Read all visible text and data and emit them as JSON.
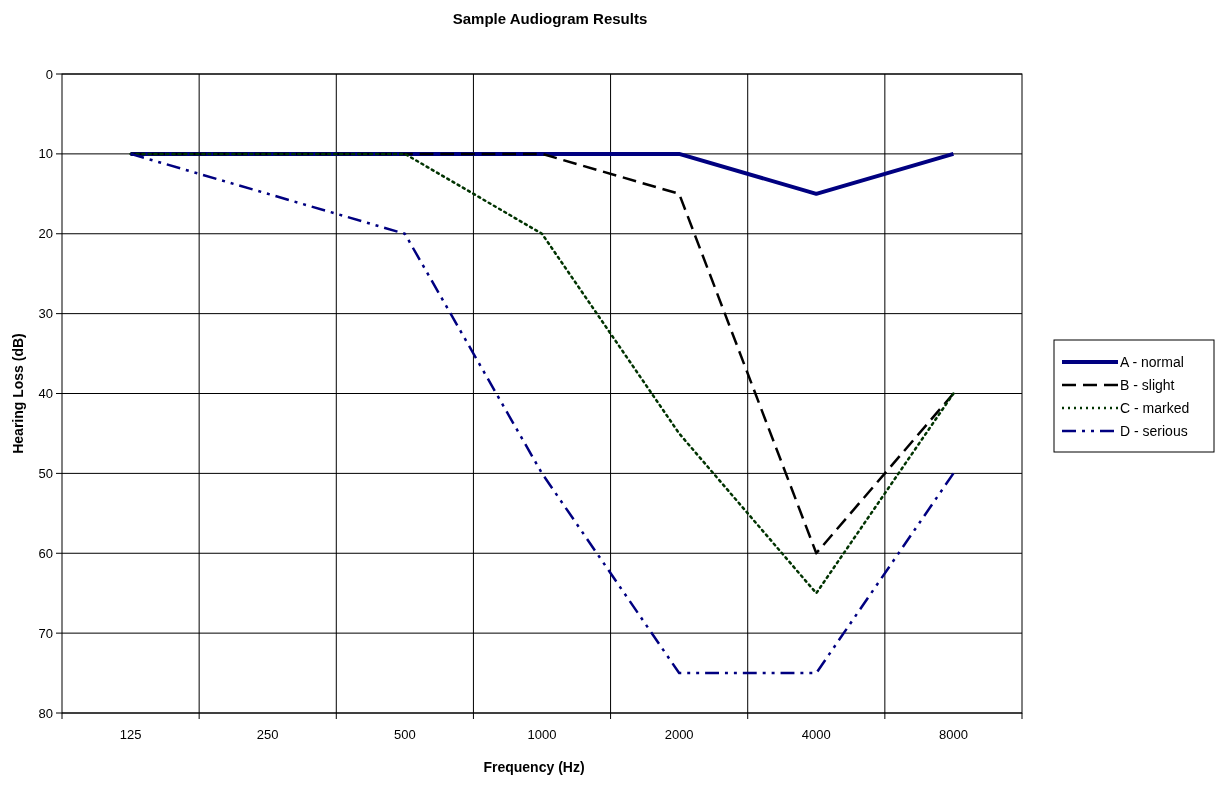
{
  "chart_data": {
    "type": "line",
    "title": "Sample Audiogram Results",
    "xlabel": "Frequency (Hz)",
    "ylabel": "Hearing Loss (dB)",
    "categories": [
      "125",
      "250",
      "500",
      "1000",
      "2000",
      "4000",
      "8000"
    ],
    "ylim": [
      80,
      0
    ],
    "yticks": [
      0,
      10,
      20,
      30,
      40,
      50,
      60,
      70,
      80
    ],
    "grid": true,
    "legend": "right",
    "marker": "none",
    "series": [
      {
        "name": "A - normal",
        "color": "#000080",
        "line_style": "solid",
        "values": [
          10,
          10,
          10,
          10,
          10,
          15,
          10
        ]
      },
      {
        "name": "B - slight",
        "color": "#000000",
        "line_style": "dashed",
        "values": [
          10,
          10,
          10,
          10,
          15,
          60,
          40
        ]
      },
      {
        "name": "C - marked",
        "color": "#003300",
        "line_style": "dotted",
        "values": [
          10,
          10,
          10,
          20,
          45,
          65,
          40
        ]
      },
      {
        "name": "D - serious",
        "color": "#000080",
        "line_style": "dashdot",
        "values": [
          10,
          15,
          20,
          50,
          75,
          75,
          50
        ]
      }
    ]
  }
}
